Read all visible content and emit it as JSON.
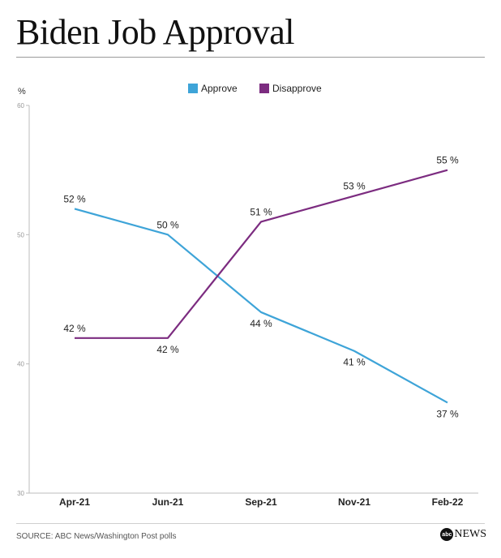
{
  "title": "Biden Job Approval",
  "source": "SOURCE: ABC News/Washington Post polls",
  "brand": {
    "logo": "abc",
    "text": "NEWS"
  },
  "colors": {
    "approve": "#3ea4d8",
    "disapprove": "#7c2c80",
    "axis": "#bdbdbd",
    "text": "#222222"
  },
  "chart_data": {
    "type": "line",
    "ylabel": "%",
    "ylim": [
      30,
      60
    ],
    "yticks": [
      30,
      40,
      50,
      60
    ],
    "grid": false,
    "legend_position": "top-center",
    "categories": [
      "Apr-21",
      "Jun-21",
      "Sep-21",
      "Nov-21",
      "Feb-22"
    ],
    "series": [
      {
        "name": "Approve",
        "color": "#3ea4d8",
        "values": [
          52,
          50,
          44,
          41,
          37
        ],
        "labels": [
          "52 %",
          "50 %",
          "44 %",
          "41 %",
          "37 %"
        ]
      },
      {
        "name": "Disapprove",
        "color": "#7c2c80",
        "values": [
          42,
          42,
          51,
          53,
          55
        ],
        "labels": [
          "42 %",
          "42 %",
          "51 %",
          "53 %",
          "55 %"
        ]
      }
    ]
  }
}
